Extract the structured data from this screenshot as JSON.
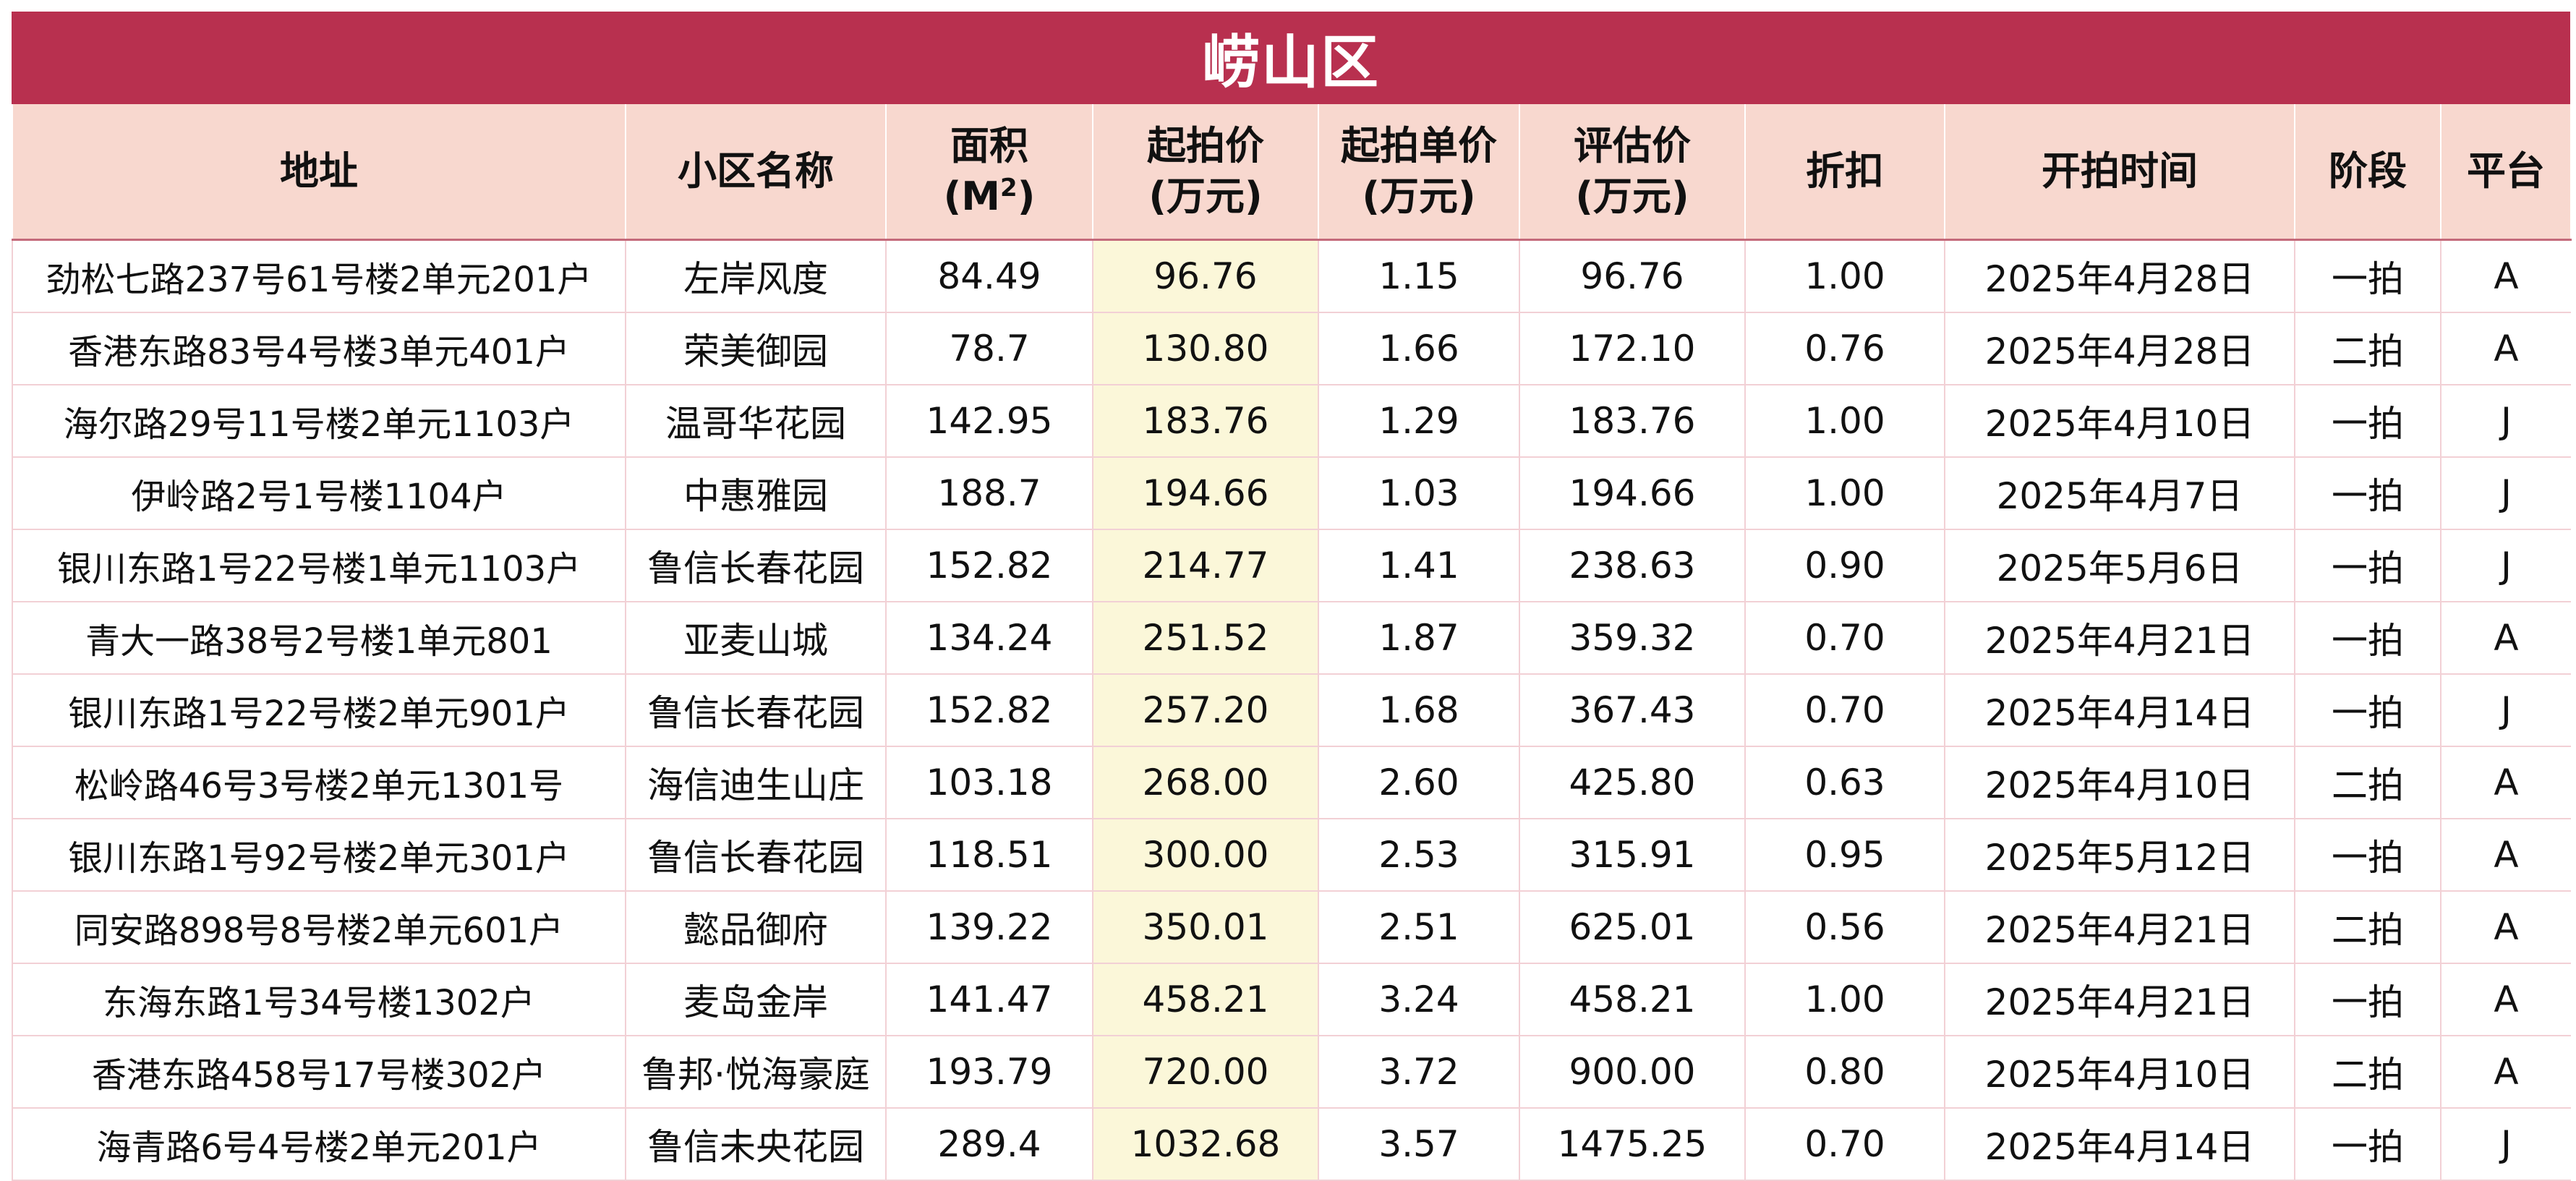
{
  "title": "崂山区",
  "headers": {
    "address": "地址",
    "community": "小区名称",
    "area_line1": "面积",
    "area_line2_prefix": "(M",
    "area_sup": "2",
    "area_line2_suffix": ")",
    "start_price_line1": "起拍价",
    "start_price_line2": "(万元)",
    "unit_price_line1": "起拍单价",
    "unit_price_line2": "(万元)",
    "appraisal_line1": "评估价",
    "appraisal_line2": "(万元)",
    "discount": "折扣",
    "start_time": "开拍时间",
    "stage": "阶段",
    "platform": "平台"
  },
  "rows": [
    {
      "address": "劲松七路237号61号楼2单元201户",
      "community": "左岸风度",
      "area": "84.49",
      "start_price": "96.76",
      "unit_price": "1.15",
      "appraisal": "96.76",
      "discount": "1.00",
      "start_time": "2025年4月28日",
      "stage": "一拍",
      "platform": "A"
    },
    {
      "address": "香港东路83号4号楼3单元401户",
      "community": "荣美御园",
      "area": "78.7",
      "start_price": "130.80",
      "unit_price": "1.66",
      "appraisal": "172.10",
      "discount": "0.76",
      "start_time": "2025年4月28日",
      "stage": "二拍",
      "platform": "A"
    },
    {
      "address": "海尔路29号11号楼2单元1103户",
      "community": "温哥华花园",
      "area": "142.95",
      "start_price": "183.76",
      "unit_price": "1.29",
      "appraisal": "183.76",
      "discount": "1.00",
      "start_time": "2025年4月10日",
      "stage": "一拍",
      "platform": "J"
    },
    {
      "address": "伊岭路2号1号楼1104户",
      "community": "中惠雅园",
      "area": "188.7",
      "start_price": "194.66",
      "unit_price": "1.03",
      "appraisal": "194.66",
      "discount": "1.00",
      "start_time": "2025年4月7日",
      "stage": "一拍",
      "platform": "J"
    },
    {
      "address": "银川东路1号22号楼1单元1103户",
      "community": "鲁信长春花园",
      "area": "152.82",
      "start_price": "214.77",
      "unit_price": "1.41",
      "appraisal": "238.63",
      "discount": "0.90",
      "start_time": "2025年5月6日",
      "stage": "一拍",
      "platform": "J"
    },
    {
      "address": "青大一路38号2号楼1单元801",
      "community": "亚麦山城",
      "area": "134.24",
      "start_price": "251.52",
      "unit_price": "1.87",
      "appraisal": "359.32",
      "discount": "0.70",
      "start_time": "2025年4月21日",
      "stage": "一拍",
      "platform": "A"
    },
    {
      "address": "银川东路1号22号楼2单元901户",
      "community": "鲁信长春花园",
      "area": "152.82",
      "start_price": "257.20",
      "unit_price": "1.68",
      "appraisal": "367.43",
      "discount": "0.70",
      "start_time": "2025年4月14日",
      "stage": "一拍",
      "platform": "J"
    },
    {
      "address": "松岭路46号3号楼2单元1301号",
      "community": "海信迪生山庄",
      "area": "103.18",
      "start_price": "268.00",
      "unit_price": "2.60",
      "appraisal": "425.80",
      "discount": "0.63",
      "start_time": "2025年4月10日",
      "stage": "二拍",
      "platform": "A"
    },
    {
      "address": "银川东路1号92号楼2单元301户",
      "community": "鲁信长春花园",
      "area": "118.51",
      "start_price": "300.00",
      "unit_price": "2.53",
      "appraisal": "315.91",
      "discount": "0.95",
      "start_time": "2025年5月12日",
      "stage": "一拍",
      "platform": "A"
    },
    {
      "address": "同安路898号8号楼2单元601户",
      "community": "懿品御府",
      "area": "139.22",
      "start_price": "350.01",
      "unit_price": "2.51",
      "appraisal": "625.01",
      "discount": "0.56",
      "start_time": "2025年4月21日",
      "stage": "二拍",
      "platform": "A"
    },
    {
      "address": "东海东路1号34号楼1302户",
      "community": "麦岛金岸",
      "area": "141.47",
      "start_price": "458.21",
      "unit_price": "3.24",
      "appraisal": "458.21",
      "discount": "1.00",
      "start_time": "2025年4月21日",
      "stage": "一拍",
      "platform": "A"
    },
    {
      "address": "香港东路458号17号楼302户",
      "community": "鲁邦·悦海豪庭",
      "area": "193.79",
      "start_price": "720.00",
      "unit_price": "3.72",
      "appraisal": "900.00",
      "discount": "0.80",
      "start_time": "2025年4月10日",
      "stage": "二拍",
      "platform": "A"
    },
    {
      "address": "海青路6号4号楼2单元201户",
      "community": "鲁信未央花园",
      "area": "289.4",
      "start_price": "1032.68",
      "unit_price": "3.57",
      "appraisal": "1475.25",
      "discount": "0.70",
      "start_time": "2025年4月14日",
      "stage": "一拍",
      "platform": "J"
    }
  ],
  "colors": {
    "title_bg": "#b8304f",
    "header_bg": "#f8d8cf",
    "highlight_col": "#fbf7d9",
    "grid_line": "#f2d0d5"
  }
}
